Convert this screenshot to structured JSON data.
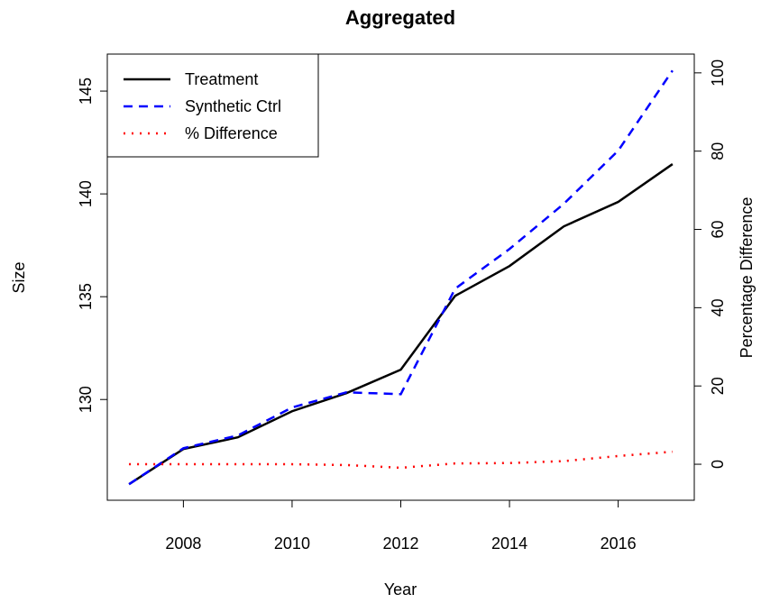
{
  "chart_data": {
    "type": "line",
    "title": "Aggregated",
    "x_label": "Year",
    "y_label": "Size",
    "y2_label": "Percentage Difference",
    "x": [
      2007,
      2008,
      2009,
      2010,
      2011,
      2012,
      2013,
      2014,
      2015,
      2016,
      2017
    ],
    "series": [
      {
        "name": "Treatment",
        "color": "#000000",
        "linestyle": "solid",
        "values": [
          125.88,
          127.59,
          128.16,
          129.43,
          130.31,
          131.45,
          135.04,
          136.49,
          138.42,
          139.61,
          141.45
        ]
      },
      {
        "name": "Synthetic Ctrl",
        "color": "#0000ff",
        "linestyle": "dashed",
        "values": [
          125.88,
          127.63,
          128.25,
          129.61,
          130.35,
          130.26,
          135.39,
          137.32,
          139.52,
          142.1,
          146.0
        ]
      },
      {
        "name": "% Difference",
        "color": "#ff0000",
        "linestyle": "dotted",
        "axis": "y2",
        "values": [
          0,
          0,
          0,
          0,
          -0.2,
          -0.9,
          0.2,
          0.3,
          0.8,
          2.1,
          3.2
        ]
      }
    ],
    "xlim": [
      2006.6,
      2017.4
    ],
    "xticks": [
      2008,
      2010,
      2012,
      2014,
      2016
    ],
    "ylim": [
      125.1,
      146.8
    ],
    "yticks": [
      130,
      135,
      140,
      145
    ],
    "y2lim": [
      -9.2,
      104.8
    ],
    "y2ticks": [
      0,
      20,
      40,
      60,
      80,
      100
    ],
    "legend": "top-left"
  }
}
